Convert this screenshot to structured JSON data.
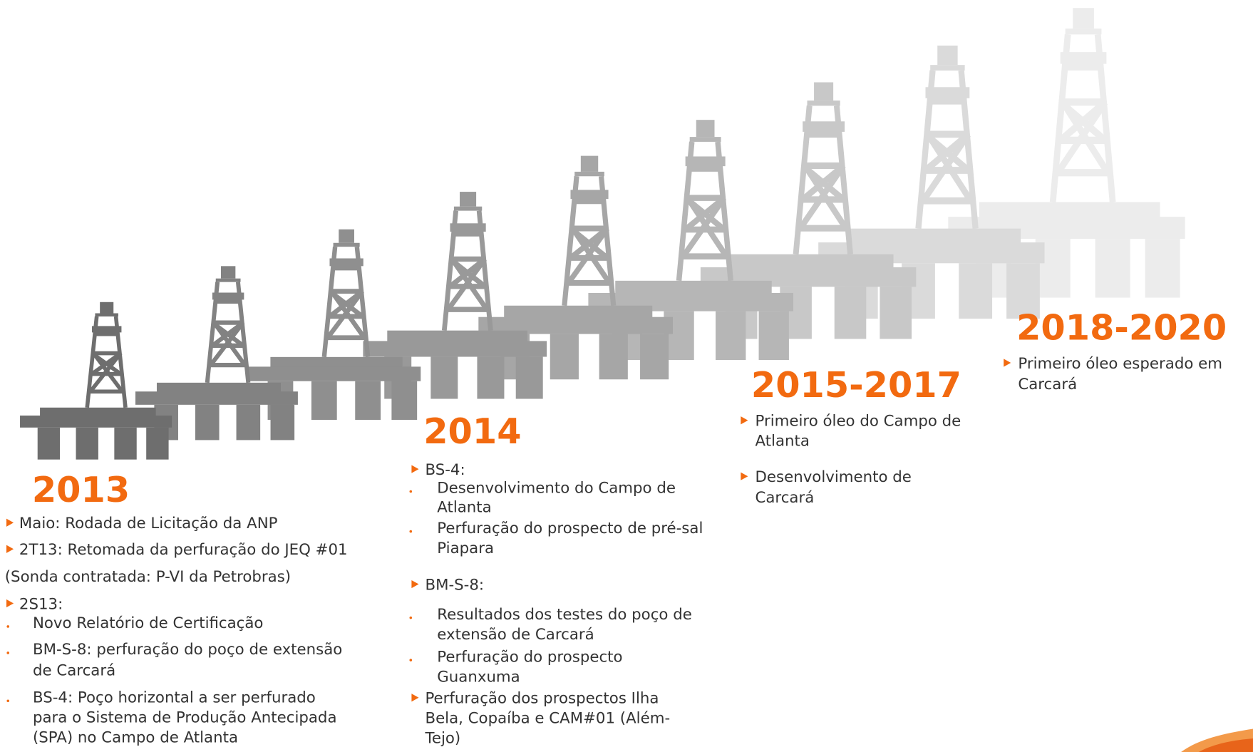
{
  "sections": [
    {
      "year": "2013",
      "items": [
        {
          "kind": "bullet",
          "lines": [
            "Maio: Rodada de Licitação da ANP"
          ]
        },
        {
          "kind": "bullet",
          "lines": [
            "2T13: Retomada da perfuração do JEQ #01"
          ]
        },
        {
          "kind": "plain",
          "lines": [
            "(Sonda contratada: P-VI da Petrobras)"
          ]
        },
        {
          "kind": "bullet",
          "lines": [
            "2S13:"
          ]
        },
        {
          "kind": "sub",
          "lines": [
            "Novo Relatório de Certificação"
          ]
        },
        {
          "kind": "sub",
          "lines": [
            "BM-S-8: perfuração do poço de extensão",
            "de Carcará"
          ]
        },
        {
          "kind": "sub",
          "lines": [
            "BS-4: Poço horizontal  a ser perfurado",
            "para o Sistema de Produção  Antecipada",
            "(SPA) no Campo de Atlanta"
          ]
        }
      ]
    },
    {
      "year": "2014",
      "items": [
        {
          "kind": "bullet",
          "lines": [
            "BS-4:"
          ]
        },
        {
          "kind": "sub",
          "lines": [
            "Desenvolvimento do Campo de",
            "Atlanta"
          ]
        },
        {
          "kind": "sub",
          "lines": [
            "Perfuração do prospecto de pré-sal",
            "Piapara"
          ]
        },
        {
          "kind": "bullet",
          "lines": [
            "BM-S-8:"
          ]
        },
        {
          "kind": "sub",
          "lines": [
            "Resultados dos testes do poço de",
            "extensão de Carcará"
          ]
        },
        {
          "kind": "sub",
          "lines": [
            "Perfuração do prospecto",
            "Guanxuma"
          ]
        },
        {
          "kind": "bullet",
          "lines": [
            "Perfuração dos prospectos  Ilha",
            "Bela, Copaíba e CAM#01 (Além-",
            "Tejo)"
          ]
        }
      ]
    },
    {
      "year": "2015-2017",
      "items": [
        {
          "kind": "bullet",
          "lines": [
            "Primeiro óleo do Campo de",
            "Atlanta"
          ]
        },
        {
          "kind": "bullet",
          "lines": [
            "Desenvolvimento de",
            "Carcará"
          ]
        }
      ]
    },
    {
      "year": "2018-2020",
      "items": [
        {
          "kind": "bullet",
          "lines": [
            "Primeiro óleo esperado em",
            "Carcará"
          ]
        }
      ]
    }
  ]
}
